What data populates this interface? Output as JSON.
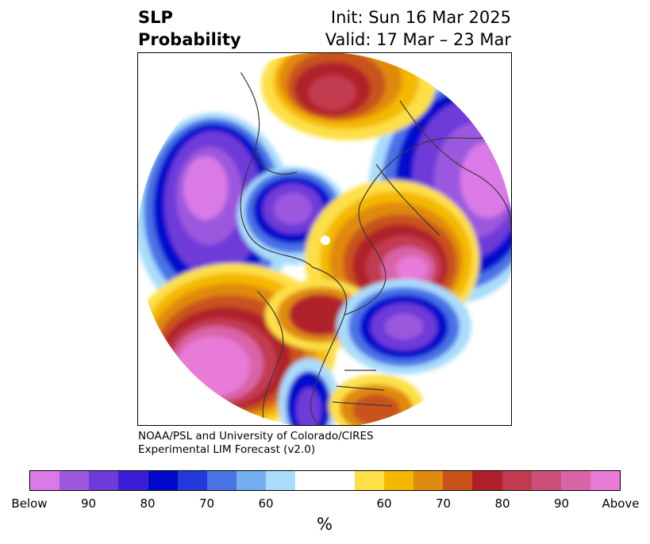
{
  "header": {
    "title_line1": "SLP",
    "title_line2": "Probability",
    "init_label": "Init: Sun 16 Mar 2025",
    "valid_label": "Valid: 17 Mar – 23 Mar"
  },
  "credit": {
    "line1": "NOAA/PSL and University of Colorado/CIRES",
    "line2": "Experimental LIM Forecast (v2.0)"
  },
  "colorbar": {
    "unit": "%",
    "colors": [
      "#d97ae6",
      "#9b59de",
      "#6e3bd9",
      "#3b1fd6",
      "#0008cc",
      "#2439db",
      "#4a72e6",
      "#73aef0",
      "#a9dcfb",
      "#ffffff",
      "#ffffff",
      "#fde047",
      "#f5b800",
      "#e08a10",
      "#c9521a",
      "#b0202a",
      "#c23a50",
      "#cc4f7a",
      "#d964a8",
      "#e87ad8"
    ],
    "ticks": [
      "Below",
      "90",
      "80",
      "70",
      "60",
      "60",
      "70",
      "80",
      "90",
      "Above"
    ]
  },
  "map": {
    "projection": "north-polar-stereographic",
    "palette": {
      "below_deep": "#d97ae6",
      "below_mid": "#6e3bd9",
      "below_strong": "#0008cc",
      "below_light": "#a9dcfb",
      "above_light": "#fde047",
      "above_mid": "#e08a10",
      "above_strong": "#b0202a",
      "above_deep": "#e87ad8"
    }
  }
}
